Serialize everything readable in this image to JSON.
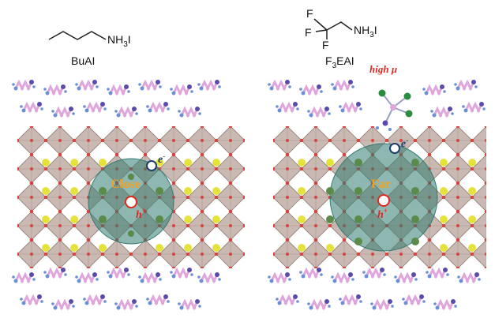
{
  "left_panel": {
    "formula": "NH",
    "formula_sub": "3",
    "formula_tail": "I",
    "name": "BuAI",
    "region_word": "Close",
    "electron_symbol": "e",
    "electron_sup": "-",
    "hole_symbol": "h",
    "hole_sup": "+"
  },
  "right_panel": {
    "fluorine_atoms": [
      "F",
      "F",
      "F"
    ],
    "formula": "NH",
    "formula_sub": "3",
    "formula_tail": "I",
    "name_prefix": "F",
    "name_sub": "3",
    "name_tail": "EAI",
    "mobility_label": "high μ",
    "region_word": "Far",
    "electron_symbol": "e",
    "electron_sup": "-",
    "hole_symbol": "h",
    "hole_sup": "+"
  },
  "colors": {
    "octahedron_fill": "#c9b9b2",
    "octahedron_stroke": "#8a7a72",
    "lattice_dot": "#d8453f",
    "cation_yellow": "#e5e23c",
    "cation_green": "#5c8a48",
    "exciton_fill": "#2f7b70",
    "region_word": "#f4a020",
    "charge_label": "#e0281f",
    "electron_ring": "#1e3c6e",
    "hole_ring": "#e0281f",
    "organic_pink": "#e0a6dc",
    "organic_blue": "#6b8fd6",
    "organic_nitrogen": "#5a4ab0",
    "fluorine_green": "#2a8c3e"
  }
}
